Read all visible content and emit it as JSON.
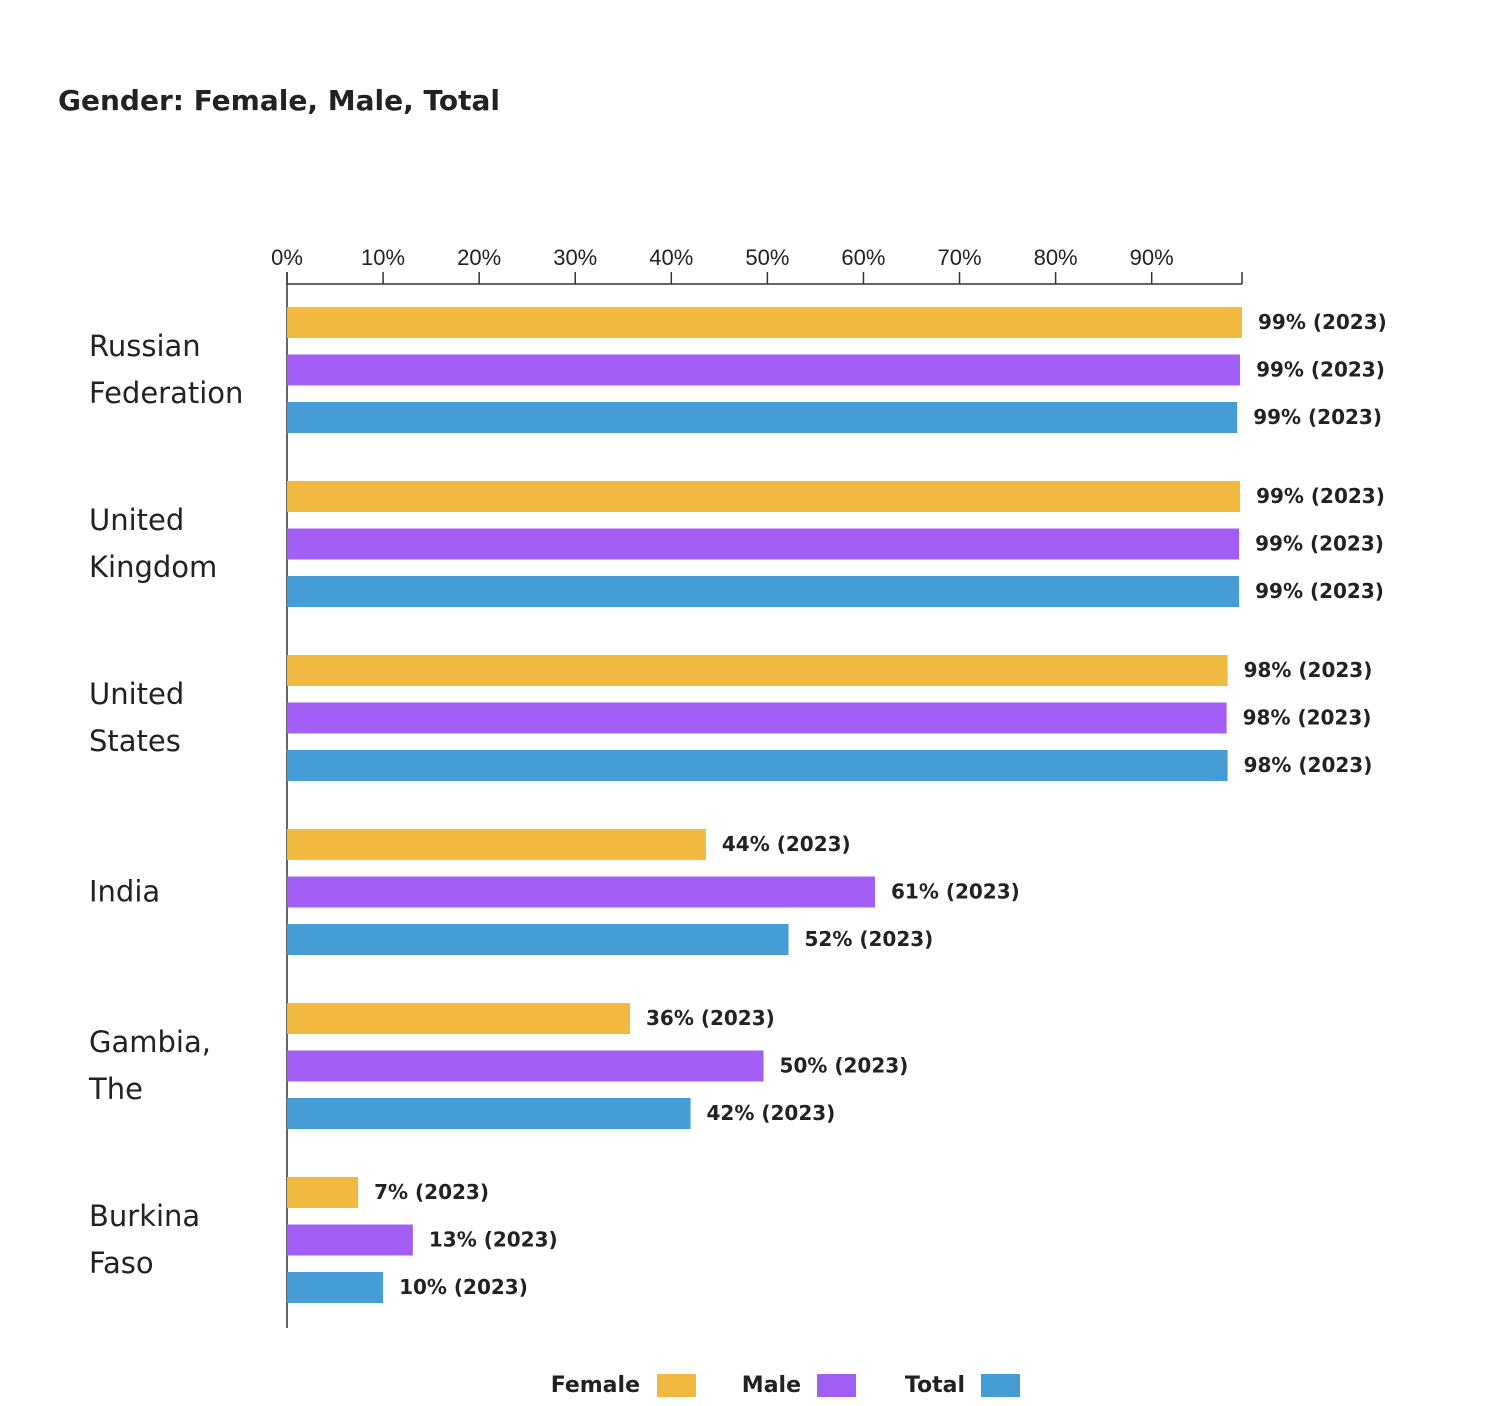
{
  "chart_data": {
    "type": "bar",
    "orientation": "horizontal",
    "title": "Gender: Female, Male, Total",
    "categories": [
      "Russian Federation",
      "United Kingdom",
      "United States",
      "India",
      "Gambia, The",
      "Burkina Faso"
    ],
    "series": [
      {
        "name": "Female",
        "color": "#f2b941",
        "values": [
          99.4,
          99.2,
          97.9,
          43.6,
          35.7,
          7.4
        ],
        "value_labels": [
          "99% (2023)",
          "99% (2023)",
          "98% (2023)",
          "44% (2023)",
          "36% (2023)",
          "7% (2023)"
        ]
      },
      {
        "name": "Male",
        "color": "#a35ff5",
        "values": [
          99.2,
          99.1,
          97.8,
          61.2,
          49.6,
          13.1
        ],
        "value_labels": [
          "99% (2023)",
          "99% (2023)",
          "98% (2023)",
          "61% (2023)",
          "50% (2023)",
          "13% (2023)"
        ]
      },
      {
        "name": "Total",
        "color": "#469dd6",
        "values": [
          98.9,
          99.1,
          97.9,
          52.2,
          42.0,
          10.0
        ],
        "value_labels": [
          "99% (2023)",
          "99% (2023)",
          "98% (2023)",
          "52% (2023)",
          "42% (2023)",
          "10% (2023)"
        ]
      }
    ],
    "xlim": [
      0,
      99.4
    ],
    "xticks": [
      {
        "value": 0,
        "label": "0%"
      },
      {
        "value": 10,
        "label": "10%"
      },
      {
        "value": 20,
        "label": "20%"
      },
      {
        "value": 30,
        "label": "30%"
      },
      {
        "value": 40,
        "label": "40%"
      },
      {
        "value": 50,
        "label": "50%"
      },
      {
        "value": 60,
        "label": "60%"
      },
      {
        "value": 70,
        "label": "70%"
      },
      {
        "value": 80,
        "label": "80%"
      },
      {
        "value": 90,
        "label": "90%"
      }
    ],
    "legend": "bottom"
  }
}
